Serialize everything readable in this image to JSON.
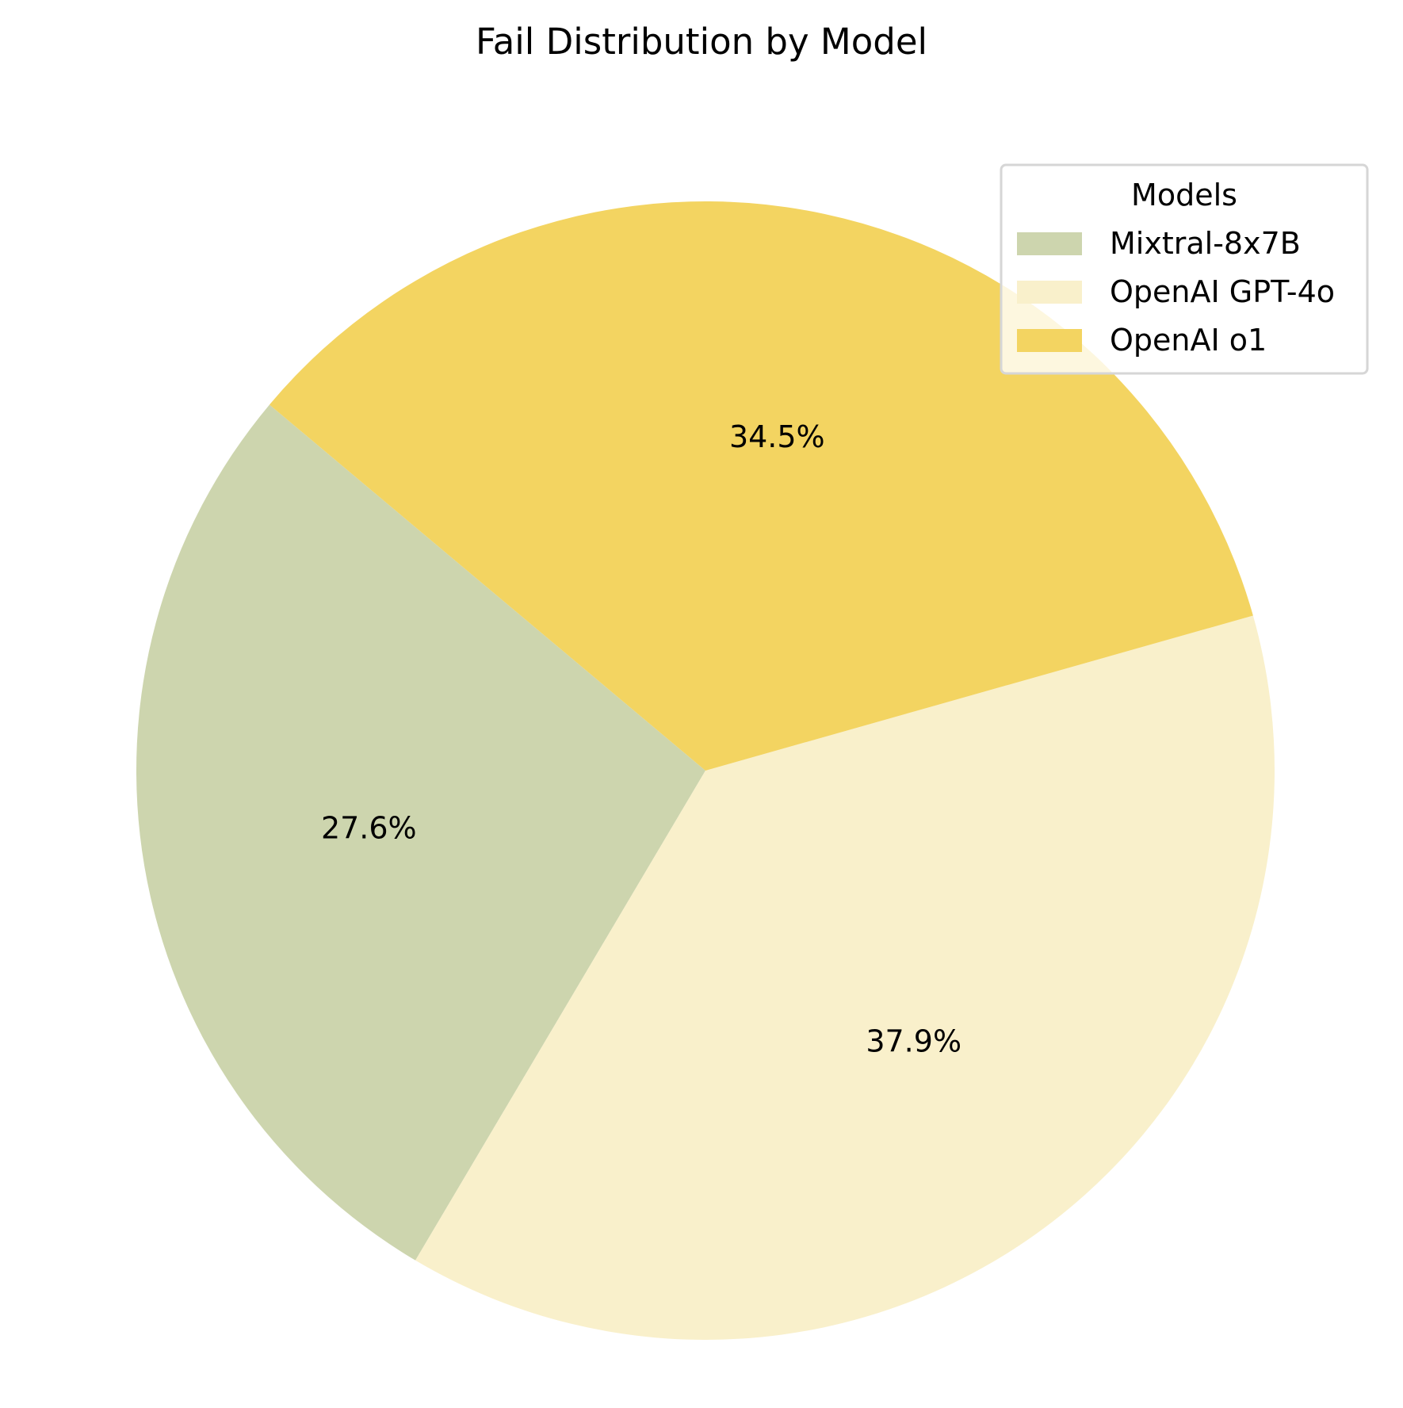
{
  "chart_data": {
    "type": "pie",
    "title": "Fail Distribution by Model",
    "slices": [
      {
        "name": "Mixtral-8x7B",
        "value": 27.6,
        "label": "27.6%",
        "color": "#cdd5ae"
      },
      {
        "name": "OpenAI GPT-4o",
        "value": 37.9,
        "label": "37.9%",
        "color": "#f9f0cb"
      },
      {
        "name": "OpenAI o1",
        "value": 34.5,
        "label": "34.5%",
        "color": "#f3d461"
      }
    ],
    "legend": {
      "title": "Models",
      "placement": "top-right"
    },
    "start_angle_deg": 140,
    "direction": "counterclockwise"
  }
}
